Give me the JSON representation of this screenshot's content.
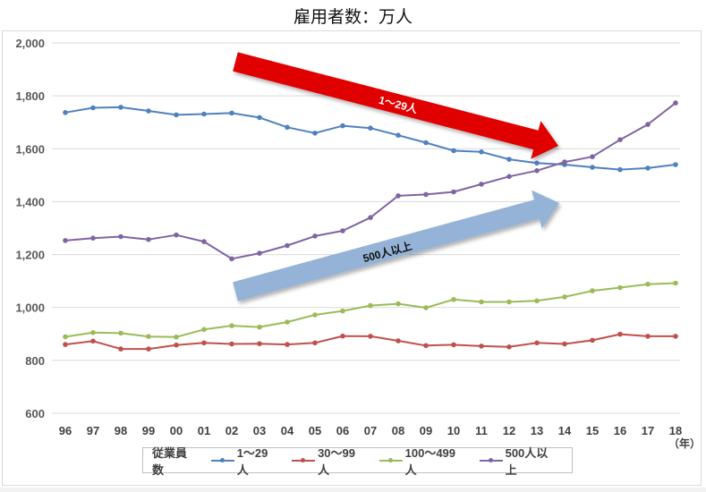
{
  "title": "雇用者数：万人",
  "year_unit": "（年）",
  "legend": {
    "title": "従業員数",
    "items": [
      {
        "label": "1〜29人",
        "color": "#4F81BD"
      },
      {
        "label": "30〜99人",
        "color": "#C0504D"
      },
      {
        "label": "100〜499人",
        "color": "#9BBB59"
      },
      {
        "label": "500人以上",
        "color": "#8064A2"
      }
    ]
  },
  "annotations": {
    "red_arrow": {
      "label": "1〜29人",
      "color": "#E00000"
    },
    "blue_arrow": {
      "label": "500人以上",
      "color": "#95B3D7"
    }
  },
  "chart_data": {
    "type": "line",
    "title": "雇用者数：万人",
    "xlabel": "（年）",
    "ylabel": "",
    "ylim": [
      600,
      2000
    ],
    "yticks": [
      600,
      800,
      1000,
      1200,
      1400,
      1600,
      1800,
      2000
    ],
    "ytick_labels": [
      "600",
      "800",
      "1,000",
      "1,200",
      "1,400",
      "1,600",
      "1,800",
      "2,000"
    ],
    "grid": true,
    "legend_position": "bottom",
    "legend_title": "従業員数",
    "categories": [
      "96",
      "97",
      "98",
      "99",
      "00",
      "01",
      "02",
      "03",
      "04",
      "05",
      "06",
      "07",
      "08",
      "09",
      "10",
      "11",
      "12",
      "13",
      "14",
      "15",
      "16",
      "17",
      "18"
    ],
    "series": [
      {
        "name": "1〜29人",
        "color": "#4F81BD",
        "values": [
          1737,
          1755,
          1757,
          1743,
          1728,
          1731,
          1735,
          1718,
          1681,
          1659,
          1687,
          1678,
          1651,
          1623,
          1593,
          1588,
          1560,
          1546,
          1540,
          1530,
          1521,
          1527,
          1540
        ]
      },
      {
        "name": "30〜99人",
        "color": "#C0504D",
        "values": [
          860,
          873,
          843,
          843,
          858,
          866,
          862,
          863,
          860,
          866,
          892,
          891,
          874,
          856,
          859,
          854,
          851,
          866,
          862,
          876,
          899,
          891,
          891
        ]
      },
      {
        "name": "100〜499人",
        "color": "#9BBB59",
        "values": [
          889,
          905,
          903,
          890,
          888,
          917,
          931,
          926,
          945,
          972,
          987,
          1007,
          1014,
          999,
          1030,
          1021,
          1021,
          1025,
          1040,
          1063,
          1075,
          1088,
          1092
        ]
      },
      {
        "name": "500人以上",
        "color": "#8064A2",
        "values": [
          1253,
          1262,
          1268,
          1257,
          1274,
          1249,
          1184,
          1205,
          1234,
          1270,
          1290,
          1340,
          1422,
          1427,
          1437,
          1466,
          1495,
          1517,
          1550,
          1570,
          1634,
          1692,
          1773
        ]
      }
    ],
    "annotations": [
      {
        "type": "arrow",
        "direction": "down",
        "label": "1〜29人",
        "color": "#E00000"
      },
      {
        "type": "arrow",
        "direction": "up",
        "label": "500人以上",
        "color": "#95B3D7"
      }
    ]
  }
}
